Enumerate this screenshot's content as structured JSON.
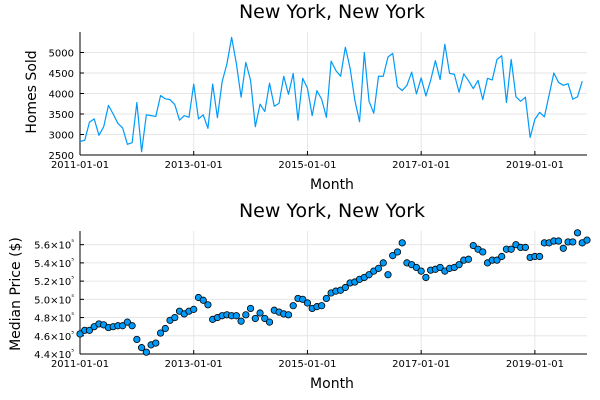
{
  "chart_data": [
    {
      "type": "line",
      "title": "New York, New York",
      "xlabel": "Month",
      "ylabel": "Homes Sold",
      "xlim": [
        "2011-01-01",
        "2019-12-01"
      ],
      "ylim": [
        2500,
        5500
      ],
      "grid": true,
      "legend": "none",
      "color": "#009af9",
      "x_tick_labels": [
        "2011-01-01",
        "2013-01-01",
        "2015-01-01",
        "2017-01-01",
        "2019-01-01"
      ],
      "y_tick_labels": [
        "2500",
        "3000",
        "3500",
        "4000",
        "4500",
        "5000"
      ],
      "y_ticks": [
        2500,
        3000,
        3500,
        4000,
        4500,
        5000
      ],
      "x_start": "2011-01",
      "x_interval": "month",
      "values": [
        2830,
        2860,
        3300,
        3380,
        2980,
        3190,
        3710,
        3500,
        3270,
        3160,
        2760,
        2800,
        3780,
        2580,
        3480,
        3460,
        3440,
        3950,
        3870,
        3850,
        3730,
        3350,
        3460,
        3420,
        4230,
        3380,
        3480,
        3150,
        4230,
        3410,
        4290,
        4720,
        5370,
        4730,
        3910,
        4760,
        4320,
        3190,
        3740,
        3560,
        4250,
        3690,
        3760,
        4420,
        3980,
        4490,
        3350,
        4370,
        4130,
        3460,
        4070,
        3860,
        3420,
        4790,
        4560,
        4420,
        5130,
        4620,
        3840,
        3310,
        5000,
        3810,
        3520,
        4420,
        4420,
        4890,
        4980,
        4170,
        4070,
        4200,
        4520,
        3990,
        4380,
        3940,
        4320,
        4800,
        4340,
        5200,
        4490,
        4470,
        4030,
        4480,
        4310,
        4120,
        4320,
        3850,
        4370,
        4330,
        4830,
        4920,
        3780,
        4830,
        3920,
        3810,
        3910,
        2930,
        3370,
        3540,
        3430,
        3960,
        4500,
        4270,
        4200,
        4240,
        3860,
        3920,
        4300
      ]
    },
    {
      "type": "scatter",
      "title": "New York, New York",
      "xlabel": "Month",
      "ylabel": "Median Price ($)",
      "xlim": [
        "2011-01-01",
        "2019-12-01"
      ],
      "ylim": [
        440000,
        575000
      ],
      "grid": true,
      "legend": "none",
      "color": "#009af9",
      "x_tick_labels": [
        "2011-01-01",
        "2013-01-01",
        "2015-01-01",
        "2017-01-01",
        "2019-01-01"
      ],
      "y_tick_labels": [
        "4.4×10⁵",
        "4.6×10⁵",
        "4.8×10⁵",
        "5.0×10⁵",
        "5.2×10⁵",
        "5.4×10⁵",
        "5.6×10⁵"
      ],
      "y_ticks": [
        440000,
        460000,
        480000,
        500000,
        520000,
        540000,
        560000
      ],
      "x_start": "2011-01",
      "x_interval": "month",
      "values": [
        462000,
        466000,
        466000,
        470000,
        473000,
        472000,
        469000,
        470000,
        471000,
        471000,
        475000,
        471000,
        456000,
        447000,
        442000,
        450000,
        452000,
        463000,
        468000,
        477000,
        480000,
        487000,
        484000,
        487000,
        489000,
        502000,
        499000,
        494000,
        478000,
        480000,
        482000,
        483000,
        482000,
        482000,
        476000,
        483000,
        490000,
        479000,
        485000,
        479000,
        475000,
        488000,
        486000,
        484000,
        483000,
        493000,
        501000,
        500000,
        496000,
        490000,
        492000,
        493000,
        501000,
        507000,
        509000,
        510000,
        513000,
        518000,
        519000,
        522000,
        524000,
        527000,
        531000,
        534000,
        540000,
        527000,
        548000,
        552000,
        562000,
        540000,
        538000,
        535000,
        531000,
        524000,
        532000,
        533000,
        535000,
        531000,
        534000,
        535000,
        538000,
        543000,
        544000,
        559000,
        555000,
        552000,
        540000,
        543000,
        543000,
        547000,
        555000,
        555000,
        560000,
        557000,
        557000,
        546000,
        547000,
        547000,
        562000,
        562000,
        564000,
        564000,
        556000,
        563000,
        563000,
        573000,
        562000,
        565000
      ]
    }
  ]
}
